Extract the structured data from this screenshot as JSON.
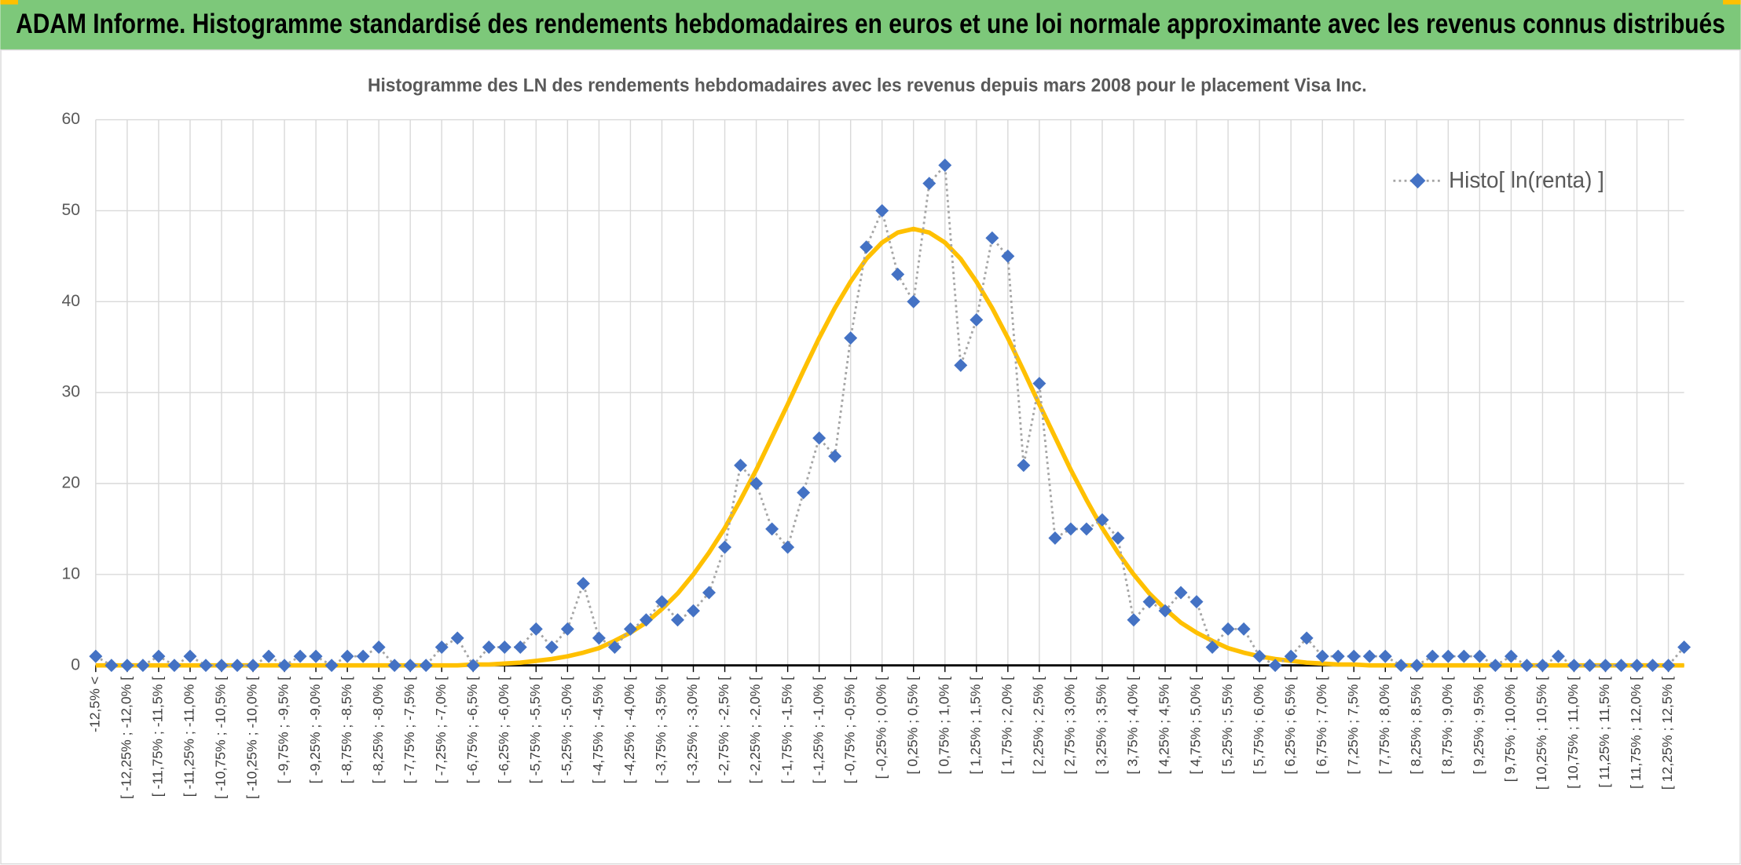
{
  "header": {
    "title": "ADAM Informe. Histogramme standardisé des rendements hebdomadaires en euros et une loi normale approximante avec les revenus connus distribués"
  },
  "chart_data": {
    "type": "line",
    "title": "Histogramme des LN des rendements hebdomadaires avec les revenus depuis mars 2008 pour le placement Visa Inc.",
    "categories": [
      "-12,5% <",
      null,
      "[ -12,25% ; -12,0% [",
      null,
      "[ -11,75% ; -11,5% [",
      null,
      "[ -11,25% ; -11,0% [",
      null,
      "[ -10,75% ; -10,5% [",
      null,
      "[ -10,25% ; -10,0% [",
      null,
      "[ -9,75% ; -9,5% [",
      null,
      "[ -9,25% ; -9,0% [",
      null,
      "[ -8,75% ; -8,5% [",
      null,
      "[ -8,25% ; -8,0% [",
      null,
      "[ -7,75% ; -7,5% [",
      null,
      "[ -7,25% ; -7,0% [",
      null,
      "[ -6,75% ; -6,5% [",
      null,
      "[ -6,25% ; -6,0% [",
      null,
      "[ -5,75% ; -5,5% [",
      null,
      "[ -5,25% ; -5,0% [",
      null,
      "[ -4,75% ; -4,5% [",
      null,
      "[ -4,25% ; -4,0% [",
      null,
      "[ -3,75% ; -3,5% [",
      null,
      "[ -3,25% ; -3,0% [",
      null,
      "[ -2,75% ; -2,5% [",
      null,
      "[ -2,25% ; -2,0% [",
      null,
      "[ -1,75% ; -1,5% [",
      null,
      "[ -1,25% ; -1,0% [",
      null,
      "[ -0,75% ; -0,5% [",
      null,
      "[ -0,25% ; 0,0% [",
      null,
      "[ 0,25% ; 0,5% [",
      null,
      "[ 0,75% ; 1,0% [",
      null,
      "[ 1,25% ; 1,5% [",
      null,
      "[ 1,75% ; 2,0% [",
      null,
      "[ 2,25% ; 2,5% [",
      null,
      "[ 2,75% ; 3,0% [",
      null,
      "[ 3,25% ; 3,5% [",
      null,
      "[ 3,75% ; 4,0% [",
      null,
      "[ 4,25% ; 4,5% [",
      null,
      "[ 4,75% ; 5,0% [",
      null,
      "[ 5,25% ; 5,5% [",
      null,
      "[ 5,75% ; 6,0% [",
      null,
      "[ 6,25% ; 6,5% [",
      null,
      "[ 6,75% ; 7,0% [",
      null,
      "[ 7,25% ; 7,5% [",
      null,
      "[ 7,75% ; 8,0% [",
      null,
      "[ 8,25% ; 8,5% [",
      null,
      "[ 8,75% ; 9,0% [",
      null,
      "[ 9,25% ; 9,5% [",
      null,
      "[ 9,75% ; 10,0% [",
      null,
      "[ 10,25% ; 10,5% [",
      null,
      "[ 10,75% ; 11,0% [",
      null,
      "[ 11,25% ; 11,5% [",
      null,
      "[ 11,75% ; 12,0% [",
      null,
      "[ 12,25% ; 12,5% [",
      null
    ],
    "series": [
      {
        "name": "Histo[ ln(renta) ]",
        "color": "#4472c4",
        "line_color": "#a5a5a5",
        "values": [
          1,
          0,
          0,
          0,
          1,
          0,
          1,
          0,
          0,
          0,
          0,
          1,
          0,
          1,
          1,
          0,
          1,
          1,
          2,
          0,
          0,
          0,
          2,
          3,
          0,
          2,
          2,
          2,
          4,
          2,
          4,
          9,
          3,
          2,
          4,
          5,
          7,
          5,
          6,
          8,
          13,
          22,
          20,
          15,
          13,
          19,
          25,
          23,
          36,
          46,
          50,
          43,
          40,
          53,
          55,
          33,
          38,
          47,
          45,
          22,
          31,
          14,
          15,
          15,
          16,
          14,
          5,
          7,
          6,
          8,
          7,
          2,
          4,
          4,
          1,
          0,
          1,
          3,
          1,
          1,
          1,
          1,
          1,
          0,
          0,
          1,
          1,
          1,
          1,
          0,
          1,
          0,
          0,
          1,
          0,
          0,
          0,
          0,
          0,
          0,
          0,
          2
        ]
      },
      {
        "color": "#ffc000",
        "values": [
          0,
          0,
          0,
          0,
          0,
          0,
          0,
          0,
          0,
          0,
          0,
          0,
          0,
          0,
          0,
          0,
          0,
          0,
          0,
          0,
          0,
          0,
          0,
          0,
          0.1,
          0.1,
          0.2,
          0.3,
          0.5,
          0.7,
          1.0,
          1.4,
          1.9,
          2.7,
          3.6,
          4.7,
          6.2,
          7.9,
          10.0,
          12.4,
          15.1,
          18.2,
          21.5,
          25.1,
          28.7,
          32.4,
          36.0,
          39.3,
          42.2,
          44.7,
          46.5,
          47.6,
          48,
          47.6,
          46.5,
          44.7,
          42.2,
          39.3,
          36.0,
          32.4,
          28.7,
          25.1,
          21.5,
          18.2,
          15.1,
          12.4,
          10.0,
          7.9,
          6.2,
          4.7,
          3.6,
          2.7,
          1.9,
          1.4,
          1.0,
          0.7,
          0.5,
          0.3,
          0.2,
          0.1,
          0.1,
          0,
          0,
          0,
          0,
          0,
          0,
          0,
          0,
          0,
          0,
          0,
          0,
          0,
          0,
          0,
          0,
          0,
          0,
          0,
          0,
          0
        ]
      }
    ],
    "ylim": [
      0,
      60
    ],
    "yticks": [
      0,
      10,
      20,
      30,
      40,
      50,
      60
    ],
    "grid": true,
    "legend": "upper right"
  }
}
